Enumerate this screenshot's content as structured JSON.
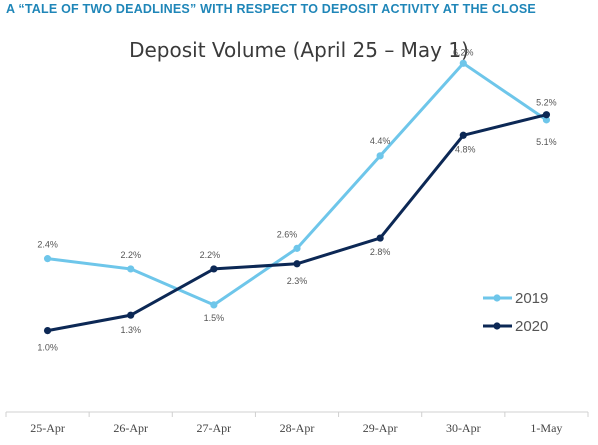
{
  "headline": "A “TALE OF TWO DEADLINES” WITH RESPECT TO DEPOSIT ACTIVITY AT THE CLOSE",
  "chart_data": {
    "type": "line",
    "title": "Deposit Volume (April 25 – May 1)",
    "xlabel": "",
    "ylabel": "",
    "categories": [
      "25-Apr",
      "26-Apr",
      "27-Apr",
      "28-Apr",
      "29-Apr",
      "30-Apr",
      "1-May"
    ],
    "ylim": [
      0,
      7
    ],
    "grid": false,
    "legend_position": "right",
    "series": [
      {
        "name": "2019",
        "color": "#6ec6ea",
        "values": [
          2.4,
          2.2,
          1.5,
          2.6,
          4.4,
          6.2,
          5.1
        ],
        "labels": [
          "2.4%",
          "2.2%",
          "1.5%",
          "2.6%",
          "4.4%",
          "6.2%",
          "5.1%"
        ]
      },
      {
        "name": "2020",
        "color": "#0c2855",
        "values": [
          1.0,
          1.3,
          2.2,
          2.3,
          2.8,
          4.8,
          5.2
        ],
        "labels": [
          "1.0%",
          "1.3%",
          "2.2%",
          "2.3%",
          "2.8%",
          "4.8%",
          "5.2%"
        ]
      }
    ]
  }
}
